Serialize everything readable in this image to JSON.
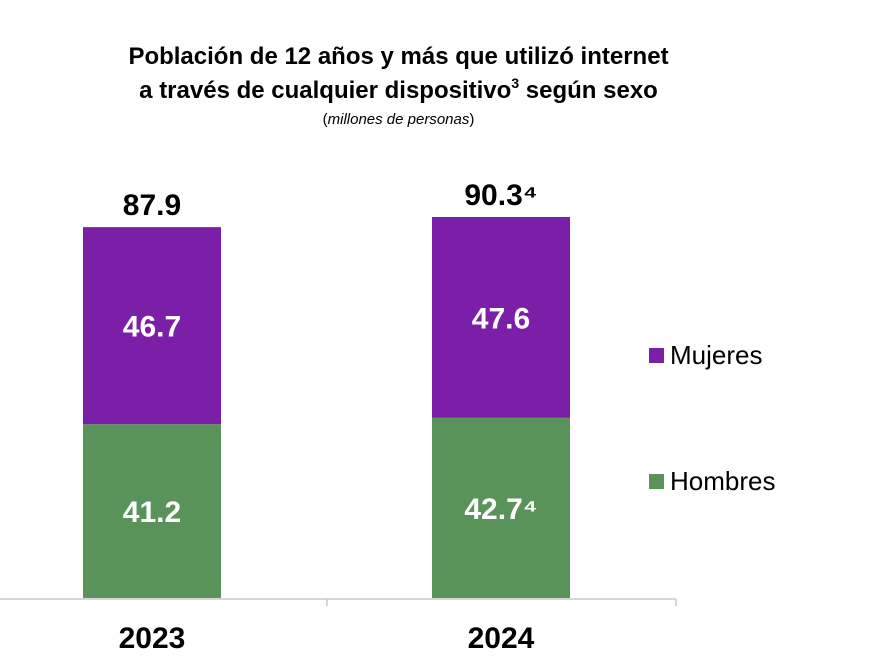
{
  "title": {
    "line1": "Población de 12 años y más que utilizó internet",
    "line2_main": "a través de cualquier dispositivo",
    "line2_sup": "3",
    "line2_end": " según sexo",
    "subtitle_open": "(",
    "subtitle_text": "millones de personas",
    "subtitle_close": ")"
  },
  "colors": {
    "mujeres": "#7B1FA9",
    "hombres": "#5A935A",
    "axis": "#c8c8c8"
  },
  "chart_data": {
    "type": "bar",
    "stacked": true,
    "categories": [
      "2023",
      "2024"
    ],
    "series": [
      {
        "name": "Hombres",
        "values": [
          41.2,
          42.7
        ],
        "labels": [
          "41.2",
          "42.7⁴"
        ]
      },
      {
        "name": "Mujeres",
        "values": [
          46.7,
          47.6
        ],
        "labels": [
          "46.7",
          "47.6"
        ]
      }
    ],
    "totals": [
      87.9,
      90.3
    ],
    "total_labels": [
      "87.9",
      "90.3⁴"
    ],
    "ylim": [
      0,
      90.3
    ],
    "grid": false,
    "legend_position": "right"
  },
  "legend": {
    "mujeres": "Mujeres",
    "hombres": "Hombres"
  }
}
